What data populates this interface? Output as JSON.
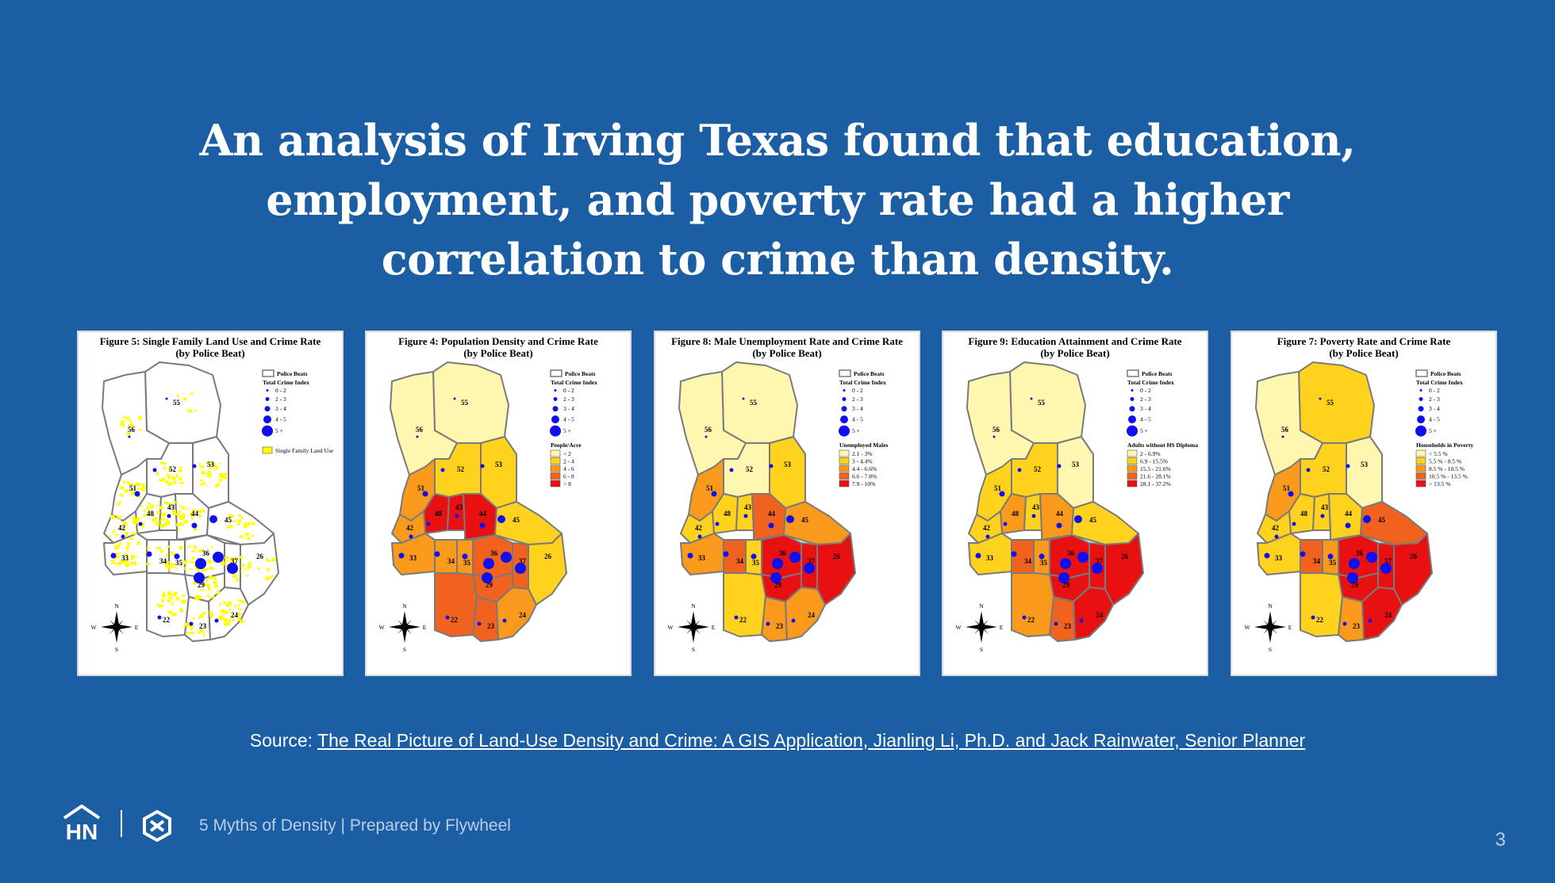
{
  "slide": {
    "title_lines": [
      "An analysis of Irving Texas found that education,",
      "employment, and poverty rate had a higher",
      "correlation to crime than density."
    ],
    "source_prefix": "Source: ",
    "source_link": "The Real Picture of Land-Use Density and Crime: A GIS Application, Jianling Li, Ph.D. and Jack Rainwater, Senior Planner",
    "footer_text": "5 Myths of Density  |  Prepared by Flywheel",
    "logo_text": "HN",
    "page_number": "3"
  },
  "figures": [
    {
      "title_line1": "Figure 5:   Single Family Land Use and Crime Rate",
      "title_line2": "(by Police Beat)",
      "legend_header": "Police Beats",
      "legend_sub": "Total Crime Index",
      "crime_classes": [
        "0 - 2",
        "2 - 3",
        "3 - 4",
        "4 - 5",
        "5 +"
      ],
      "layer_title": "",
      "layer_classes": [
        "Single Family Land Use"
      ],
      "layer_colors": [
        "#ffff00"
      ]
    },
    {
      "title_line1": "Figure 4:    Population Density and Crime Rate",
      "title_line2": "(by Police Beat)",
      "legend_header": "Police Beats",
      "legend_sub": "Total Crime Index",
      "crime_classes": [
        "0 - 2",
        "2 - 3",
        "3 - 4",
        "4 - 5",
        "5 +"
      ],
      "layer_title": "People/Acre",
      "layer_classes": [
        "< 2",
        "2 - 4",
        "4 - 6",
        "6 - 8",
        "> 8"
      ],
      "layer_colors": [
        "#fff6b0",
        "#ffd21e",
        "#f99a1c",
        "#f0621e",
        "#e81010"
      ]
    },
    {
      "title_line1": "Figure 8:    Male Unemployment Rate and Crime Rate",
      "title_line2": "(by Police Beat)",
      "legend_header": "Police Beats",
      "legend_sub": "Total Crime Index",
      "crime_classes": [
        "0 - 2",
        "2 - 3",
        "3 - 4",
        "4 - 5",
        "5 +"
      ],
      "layer_title": "Unemployed Males",
      "layer_classes": [
        "2.1 - 3%",
        "3 - 4.4%",
        "4.4 - 6.6%",
        "6.6 - 7.8%",
        "7.9 - 10%"
      ],
      "layer_colors": [
        "#fff6b0",
        "#ffd21e",
        "#f99a1c",
        "#f0621e",
        "#e81010"
      ]
    },
    {
      "title_line1": "Figure 9:    Education Attainment and Crime Rate",
      "title_line2": "(by Police Beat)",
      "legend_header": "Police Beats",
      "legend_sub": "Total Crime Index",
      "crime_classes": [
        "0 - 2",
        "2 - 3",
        "3 - 4",
        "4 - 5",
        "5 +"
      ],
      "layer_title": "Adults without HS Diploma",
      "layer_classes": [
        "2 - 6.9%",
        "6.9 - 15.5%",
        "15.5 - 21.6%",
        "21.6 - 28.1%",
        "28.1 - 37.2%"
      ],
      "layer_colors": [
        "#fff6b0",
        "#ffd21e",
        "#f99a1c",
        "#f0621e",
        "#e81010"
      ]
    },
    {
      "title_line1": "Figure 7:  Poverty Rate and Crime Rate",
      "title_line2": "(by Police Beat)",
      "legend_header": "Police Beats",
      "legend_sub": "Total Crime Index",
      "crime_classes": [
        "0 - 2",
        "2 - 3",
        "3 - 4",
        "4 - 5",
        "5 +"
      ],
      "layer_title": "Households in Poverty",
      "layer_classes": [
        "< 5.5 %",
        "5.5 % - 8.5 %",
        "8.5 % - 10.5 %",
        "10.5 % - 13.5 %",
        "> 13.5 %"
      ],
      "layer_colors": [
        "#fff6b0",
        "#ffd21e",
        "#f99a1c",
        "#f0621e",
        "#e81010"
      ]
    }
  ],
  "beats": [
    "55",
    "56",
    "52",
    "53",
    "51",
    "48",
    "43",
    "42",
    "44",
    "45",
    "33",
    "34",
    "35",
    "36",
    "37",
    "29",
    "26",
    "22",
    "23",
    "24"
  ],
  "compass": {
    "n": "N",
    "s": "S",
    "e": "E",
    "w": "W"
  },
  "map_classes": {
    "fig4": [
      0,
      0,
      1,
      1,
      2,
      4,
      4,
      2,
      4,
      1,
      2,
      2,
      2,
      3,
      3,
      3,
      1,
      3,
      3,
      2
    ],
    "fig8": [
      0,
      0,
      0,
      1,
      2,
      1,
      1,
      1,
      3,
      2,
      2,
      3,
      1,
      4,
      4,
      4,
      4,
      1,
      2,
      2
    ],
    "fig9": [
      0,
      0,
      1,
      0,
      1,
      2,
      1,
      1,
      2,
      1,
      1,
      3,
      2,
      4,
      4,
      4,
      4,
      2,
      3,
      4
    ],
    "fig7": [
      1,
      0,
      1,
      0,
      2,
      1,
      1,
      1,
      1,
      3,
      1,
      3,
      2,
      4,
      4,
      4,
      4,
      1,
      2,
      4
    ]
  },
  "crime_class_per_beat": [
    0,
    0,
    1,
    1,
    2,
    1,
    1,
    1,
    2,
    3,
    2,
    2,
    2,
    4,
    4,
    4,
    4,
    1,
    1,
    1
  ]
}
